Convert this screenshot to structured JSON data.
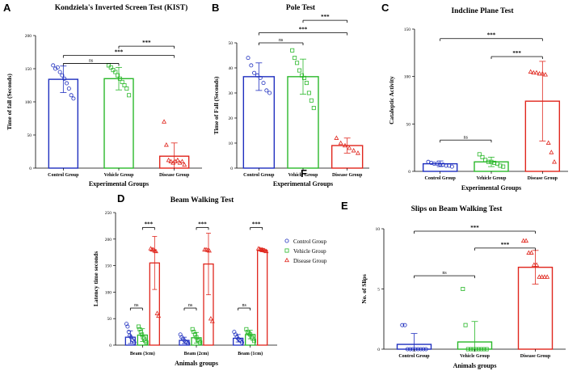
{
  "colors": {
    "control": "#1f2fbf",
    "vehicle": "#2ab82a",
    "disease": "#e0261d",
    "axis": "#000000"
  },
  "legend": {
    "entries": [
      {
        "label": "Control Group",
        "marker": "circle",
        "color": "#1f2fbf"
      },
      {
        "label": "Vehicle Group",
        "marker": "square",
        "color": "#2ab82a"
      },
      {
        "label": "Disease Group",
        "marker": "triangle",
        "color": "#e0261d"
      }
    ]
  },
  "chart_data": [
    {
      "panel": "A",
      "type": "bar",
      "title": "Kondziela's Inverted Screen Test (KIST)",
      "xlabel": "Experimental Groups",
      "ylabel": "Time of fall (Seconds)",
      "ylim": [
        0,
        200
      ],
      "yticks": [
        0,
        50,
        100,
        150,
        200
      ],
      "categories": [
        "Control Group",
        "Vehicle Group",
        "Disease Group"
      ],
      "series_colors": [
        "#1f2fbf",
        "#2ab82a",
        "#e0261d"
      ],
      "markers": [
        "circle",
        "square",
        "triangle"
      ],
      "values": [
        134,
        135,
        18
      ],
      "errors": [
        20,
        17,
        20
      ],
      "points": [
        [
          155,
          150,
          152,
          145,
          140,
          135,
          128,
          120,
          110,
          105
        ],
        [
          155,
          152,
          148,
          145,
          140,
          135,
          130,
          125,
          120,
          110
        ],
        [
          70,
          35,
          12,
          10,
          8,
          10,
          12,
          8,
          10,
          5
        ]
      ],
      "sig": [
        {
          "from": 0,
          "to": 1,
          "label": "ns",
          "y": 158
        },
        {
          "from": 0,
          "to": 2,
          "label": "***",
          "y": 170
        },
        {
          "from": 1,
          "to": 2,
          "label": "***",
          "y": 184
        }
      ]
    },
    {
      "panel": "B",
      "type": "bar",
      "title": "Pole Test",
      "xlabel": "Experimental Groups",
      "ylabel": "Time of Fall (Seconds)",
      "ylim": [
        0,
        50
      ],
      "yticks": [
        0,
        10,
        20,
        30,
        40,
        50
      ],
      "categories": [
        "Control Group",
        "Vehicle Group",
        "Disease Group"
      ],
      "series_colors": [
        "#1f2fbf",
        "#2ab82a",
        "#e0261d"
      ],
      "markers": [
        "circle",
        "square",
        "triangle"
      ],
      "values": [
        36.5,
        36.5,
        9
      ],
      "errors": [
        5.5,
        7,
        3
      ],
      "points": [
        [
          44,
          41,
          38,
          37,
          36,
          34,
          31,
          30
        ],
        [
          47,
          44,
          42,
          39,
          37,
          36,
          34,
          30,
          27,
          24
        ],
        [
          12,
          10,
          9,
          8,
          7,
          6
        ]
      ],
      "sig": [
        {
          "from": 0,
          "to": 1,
          "label": "ns",
          "y": 50
        },
        {
          "from": 0,
          "to": 2,
          "label": "***",
          "y": 54
        },
        {
          "from": 1,
          "to": 2,
          "label": "***",
          "y": 59
        }
      ]
    },
    {
      "panel": "C",
      "type": "bar",
      "title": "Indcline Plane Test",
      "xlabel": "Experimental Groups",
      "ylabel": "Cataleptic Activity",
      "ylim": [
        0,
        150
      ],
      "yticks": [
        0,
        50,
        100,
        150
      ],
      "categories": [
        "Control Group",
        "Vehicle Group",
        "Disease Group"
      ],
      "series_colors": [
        "#1f2fbf",
        "#2ab82a",
        "#e0261d"
      ],
      "markers": [
        "circle",
        "square",
        "triangle"
      ],
      "values": [
        8,
        10,
        74
      ],
      "errors": [
        3,
        5,
        42
      ],
      "points": [
        [
          10,
          9,
          8,
          8,
          7,
          7,
          6,
          6,
          5
        ],
        [
          18,
          15,
          12,
          10,
          10,
          9,
          8,
          6,
          5
        ],
        [
          105,
          104,
          104,
          103,
          103,
          102,
          30,
          20,
          10
        ]
      ],
      "sig": [
        {
          "from": 0,
          "to": 1,
          "label": "ns",
          "y": 33
        },
        {
          "from": 0,
          "to": 2,
          "label": "***",
          "y": 140
        },
        {
          "from": 1,
          "to": 2,
          "label": "***",
          "y": 121
        }
      ]
    },
    {
      "panel": "D",
      "type": "grouped-bar",
      "title": "Beam Walking Test",
      "xlabel": "Animals groups",
      "ylabel": "Latency time seconds",
      "ylim": [
        0,
        250
      ],
      "yticks": [
        0,
        50,
        100,
        150,
        200,
        250
      ],
      "categories": [
        "Beam (3cm)",
        "Beam (2cm)",
        "Beam (1cm)"
      ],
      "series": [
        {
          "name": "Control Group",
          "color": "#1f2fbf",
          "marker": "circle",
          "values": [
            15,
            9,
            13
          ],
          "errors": [
            12,
            6,
            7
          ],
          "points": [
            [
              40,
              35,
              25,
              18,
              15,
              10,
              8,
              5
            ],
            [
              20,
              15,
              12,
              9,
              6,
              5,
              3
            ],
            [
              25,
              20,
              15,
              12,
              10,
              8,
              5
            ]
          ]
        },
        {
          "name": "Vehicle Group",
          "color": "#2ab82a",
          "marker": "square",
          "values": [
            19,
            14,
            20
          ],
          "errors": [
            12,
            10,
            8
          ],
          "points": [
            [
              35,
              30,
              25,
              20,
              15,
              12,
              8,
              5
            ],
            [
              30,
              25,
              20,
              15,
              10,
              8,
              5
            ],
            [
              30,
              25,
              22,
              20,
              15,
              12,
              8
            ]
          ]
        },
        {
          "name": "Disease Group",
          "color": "#e0261d",
          "marker": "triangle",
          "values": [
            155,
            153,
            179
          ],
          "errors": [
            50,
            58,
            3
          ],
          "points": [
            [
              182,
              180,
              180,
              178,
              177,
              60,
              55
            ],
            [
              180,
              180,
              179,
              178,
              50,
              45
            ],
            [
              182,
              181,
              180,
              180,
              179,
              178,
              177
            ]
          ]
        }
      ],
      "sig": [
        {
          "category": 0,
          "from": 0,
          "to": 1,
          "label": "ns",
          "y": 70
        },
        {
          "category": 0,
          "from": 1,
          "to": 2,
          "label": "***",
          "y": 222
        },
        {
          "category": 1,
          "from": 0,
          "to": 1,
          "label": "ns",
          "y": 70
        },
        {
          "category": 1,
          "from": 1,
          "to": 2,
          "label": "***",
          "y": 222
        },
        {
          "category": 2,
          "from": 0,
          "to": 1,
          "label": "ns",
          "y": 70
        },
        {
          "category": 2,
          "from": 1,
          "to": 2,
          "label": "***",
          "y": 222
        }
      ]
    },
    {
      "panel": "E",
      "type": "bar",
      "title": "Slips on Beam Walking Test",
      "xlabel": "Animals groups",
      "ylabel": "No. of Slips",
      "ylim": [
        0,
        10
      ],
      "yticks": [
        0,
        5,
        10
      ],
      "categories": [
        "Control Group",
        "Vehicle Group",
        "Disease Group"
      ],
      "series_colors": [
        "#1f2fbf",
        "#2ab82a",
        "#e0261d"
      ],
      "markers": [
        "circle",
        "square",
        "triangle"
      ],
      "values": [
        0.4,
        0.6,
        6.8
      ],
      "errors": [
        0.9,
        1.7,
        1.4
      ],
      "points": [
        [
          2,
          2,
          0,
          0,
          0,
          0,
          0,
          0,
          0,
          0
        ],
        [
          5,
          2,
          0,
          0,
          0,
          0,
          0,
          0,
          0,
          0
        ],
        [
          9,
          9,
          8,
          8,
          7,
          7,
          6,
          6,
          6,
          6
        ]
      ],
      "sig": [
        {
          "from": 0,
          "to": 1,
          "label": "ns",
          "y": 6.1
        },
        {
          "from": 0,
          "to": 2,
          "label": "***",
          "y": 9.8
        },
        {
          "from": 1,
          "to": 2,
          "label": "***",
          "y": 8.4
        }
      ]
    }
  ]
}
